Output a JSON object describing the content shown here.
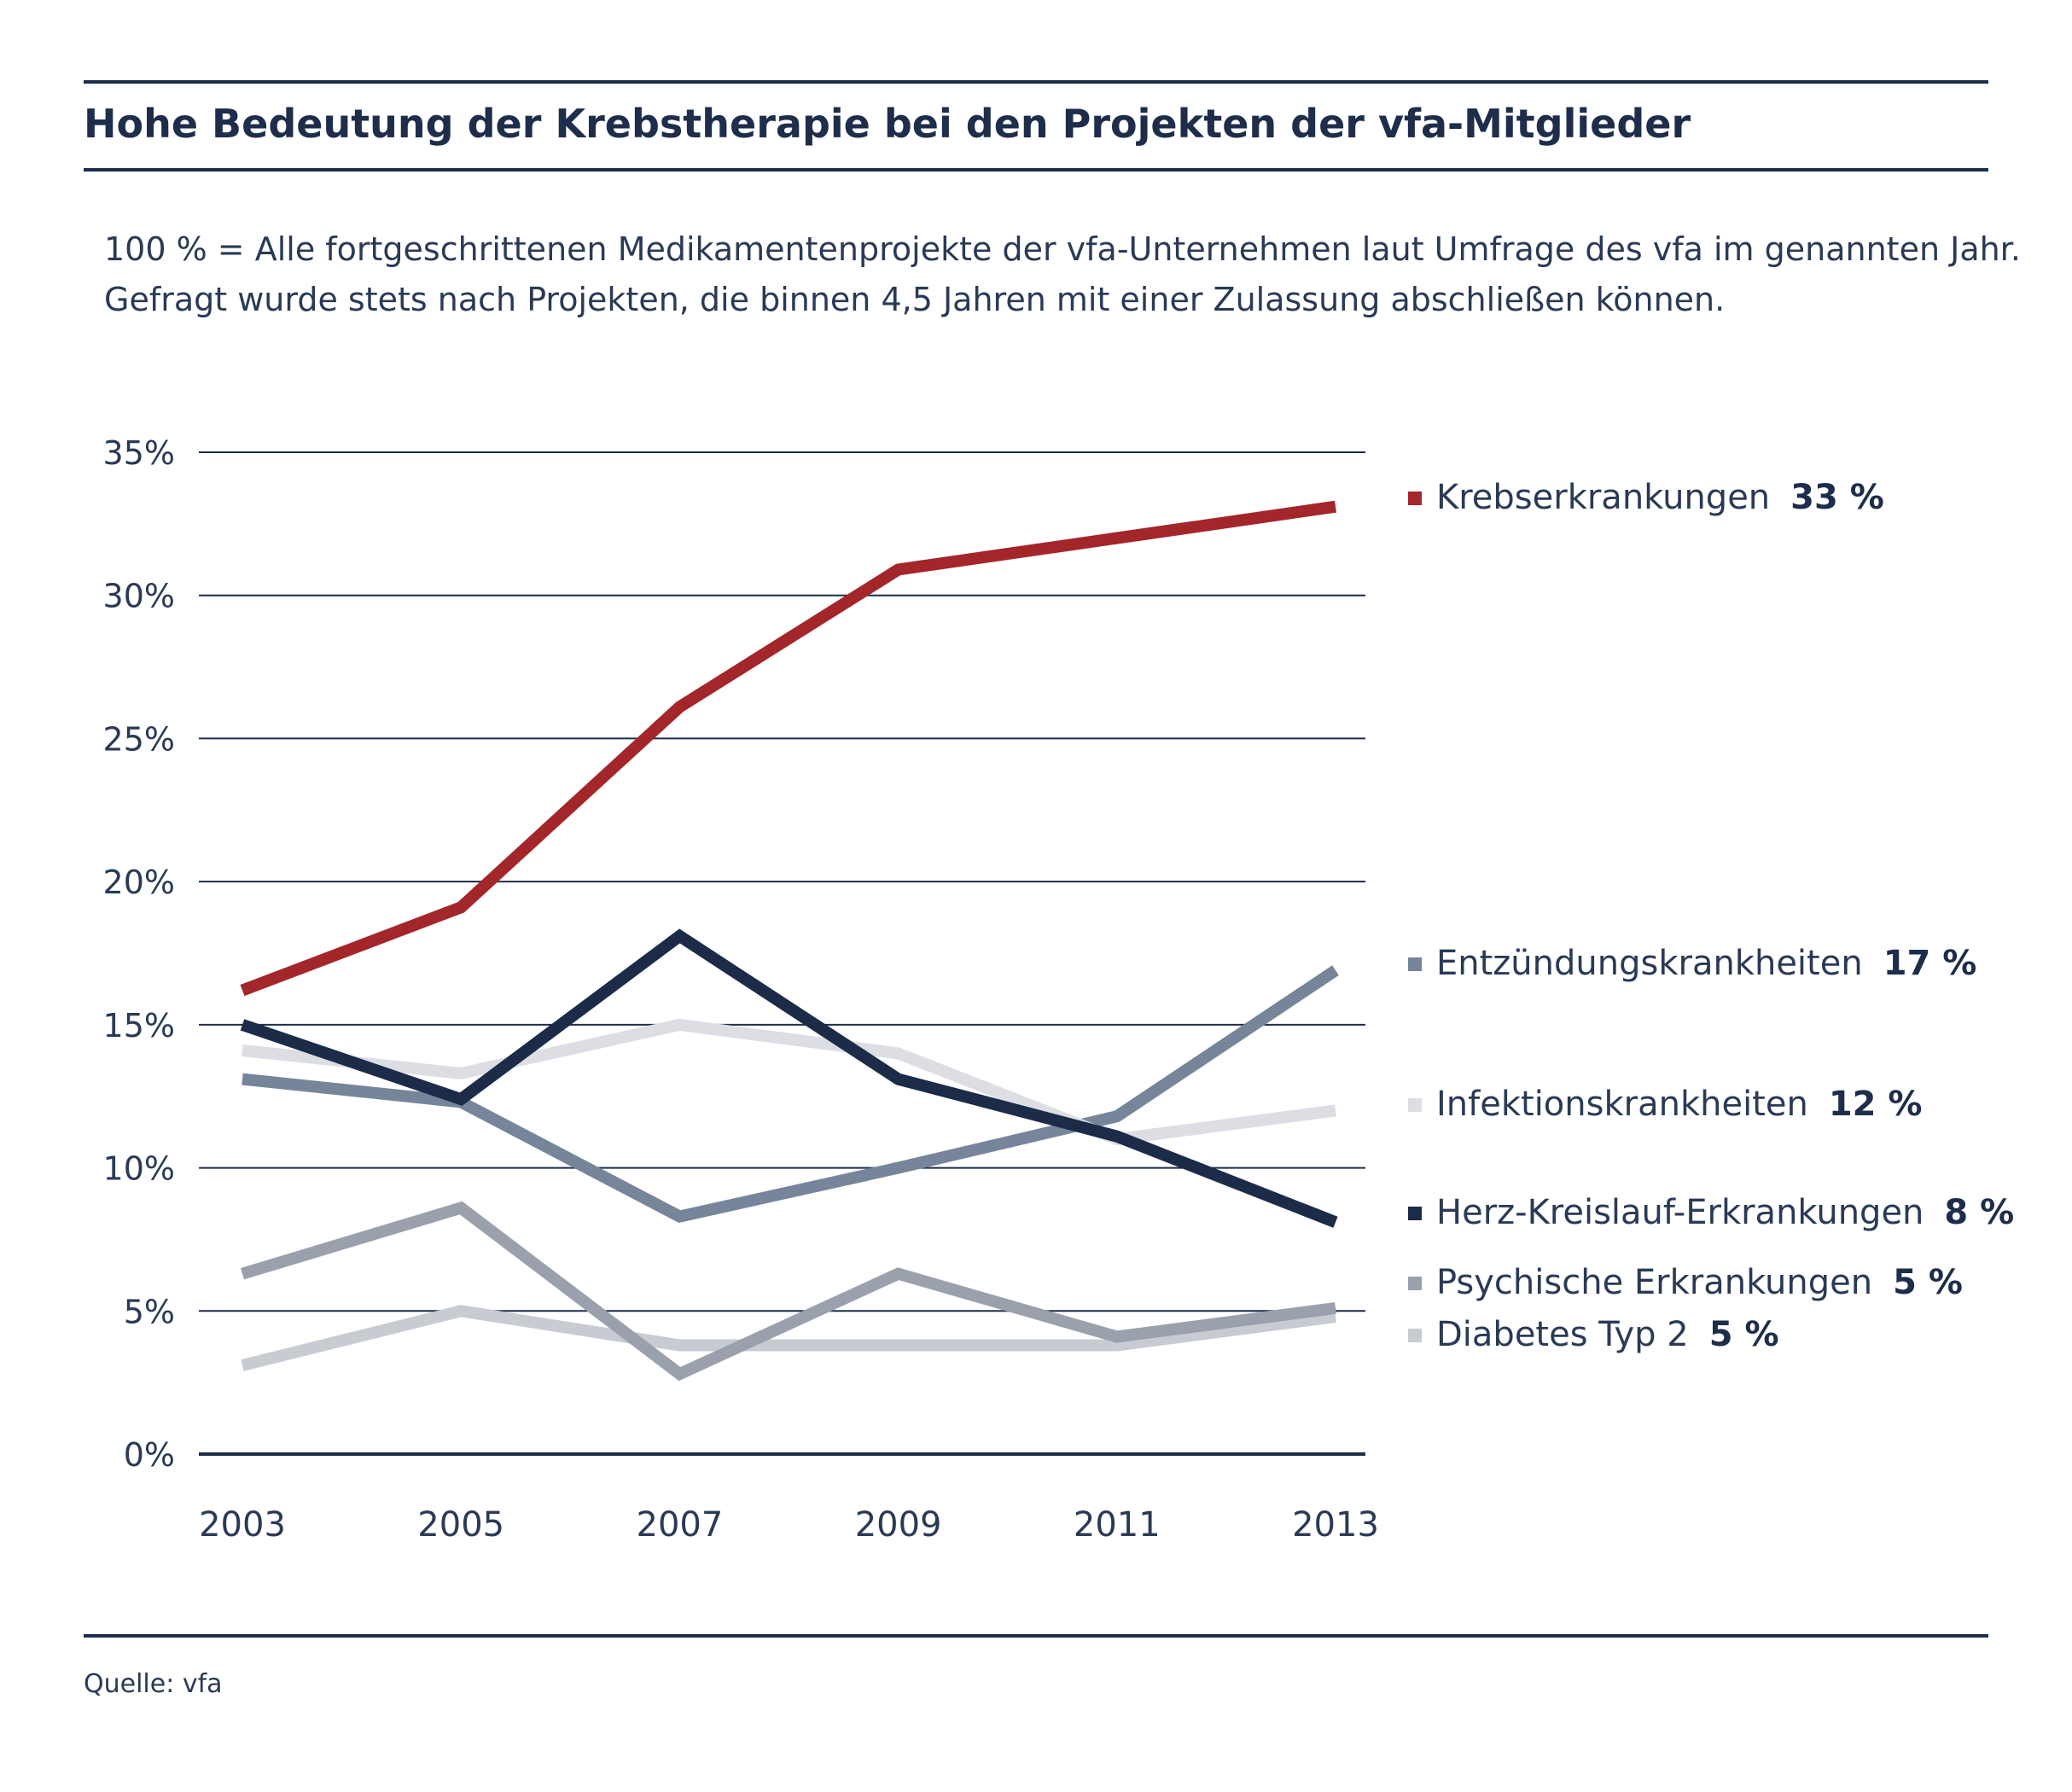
{
  "title": "Hohe Bedeutung der Krebstherapie bei den Projekten der vfa-Mitglieder",
  "subtitle": [
    "100 % = Alle fortgeschrittenen Medikamentenprojekte der vfa-Unternehmen laut Umfrage des vfa im genannten Jahr.",
    "Gefragt wurde stets nach Projekten, die binnen 4,5 Jahren mit einer Zulassung abschließen können."
  ],
  "source": "Quelle: vfa",
  "chart_data": {
    "type": "line",
    "x": [
      "2003",
      "2005",
      "2007",
      "2009",
      "2011",
      "2013"
    ],
    "ylim": [
      0,
      35
    ],
    "yticks": [
      0,
      5,
      10,
      15,
      20,
      25,
      30,
      35
    ],
    "ytick_labels": [
      "0%",
      "5%",
      "10%",
      "15%",
      "20%",
      "25%",
      "30%",
      "35%"
    ],
    "grid": true,
    "legend_position": "right",
    "series": [
      {
        "name": "Krebserkrankungen",
        "label": "33 %",
        "color": "#a3262a",
        "values": [
          16.2,
          19.1,
          26.1,
          30.9,
          32.0,
          33.1
        ]
      },
      {
        "name": "Entzündungskrankheiten",
        "label": "17 %",
        "color": "#77859a",
        "values": [
          13.1,
          12.3,
          8.3,
          10.0,
          11.8,
          16.9
        ]
      },
      {
        "name": "Infektionskrankheiten",
        "label": "12 %",
        "color": "#dcdee4",
        "values": [
          14.1,
          13.3,
          15.0,
          14.0,
          11.0,
          12.0
        ]
      },
      {
        "name": "Herz-Kreislauf-Erkrankungen",
        "label": "8 %",
        "color": "#1b2b48",
        "values": [
          15.0,
          12.4,
          18.1,
          13.1,
          11.1,
          8.1
        ]
      },
      {
        "name": "Psychische Erkrankungen",
        "label": "5 %",
        "color": "#9aa1ad",
        "values": [
          6.3,
          8.6,
          2.8,
          6.3,
          4.1,
          5.1
        ]
      },
      {
        "name": "Diabetes Typ 2",
        "label": "5 %",
        "color": "#c8cbd2",
        "values": [
          3.1,
          5.0,
          3.8,
          3.8,
          3.8,
          4.8
        ]
      }
    ]
  }
}
